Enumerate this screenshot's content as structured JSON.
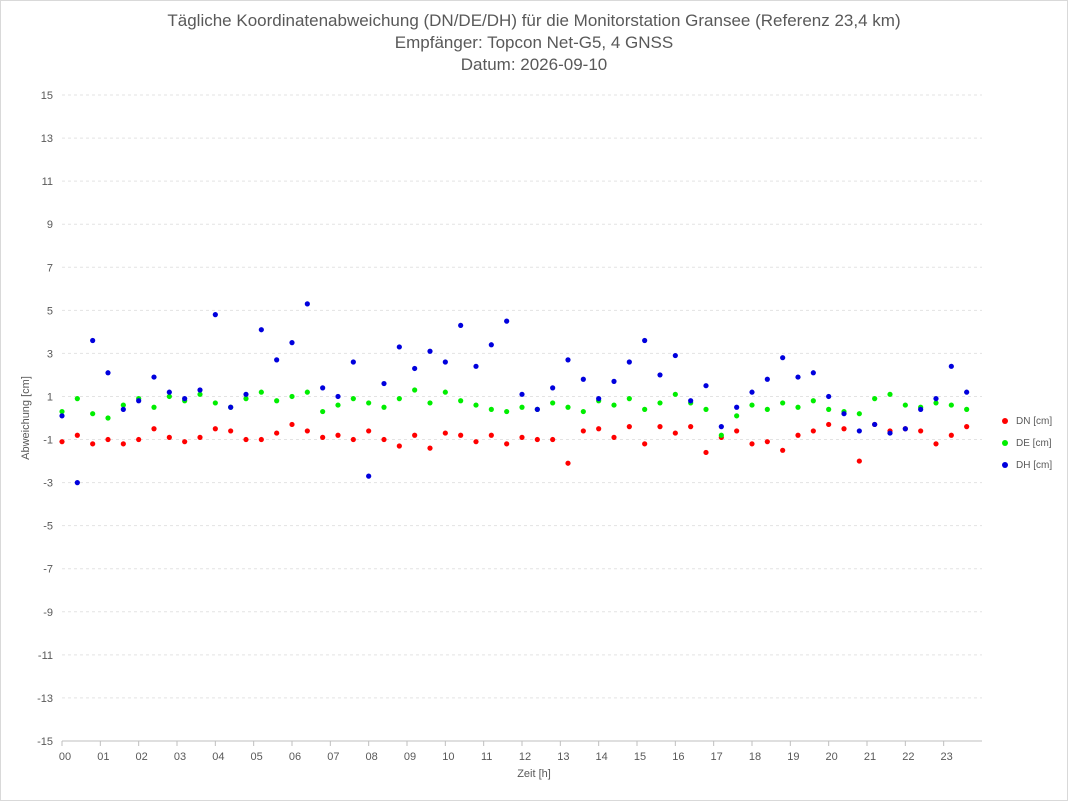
{
  "chart_data": {
    "type": "scatter",
    "title": "Tägliche Koordinatenabweichung (DN/DE/DH) für die Monitorstation Gransee (Referenz 23,4 km)",
    "subtitle1": "Empfänger: Topcon Net-G5, 4 GNSS",
    "subtitle2": "Datum: 2026-09-10",
    "xlabel": "Zeit [h]",
    "ylabel": "Abweichung [cm]",
    "xlim": [
      0,
      24
    ],
    "ylim": [
      -15,
      15
    ],
    "yticks": [
      "15",
      "13",
      "11",
      "9",
      "7",
      "5",
      "3",
      "1",
      "-1",
      "-3",
      "-5",
      "-7",
      "-9",
      "-11",
      "-13",
      "-15"
    ],
    "xticks": [
      "00",
      "01",
      "02",
      "03",
      "04",
      "05",
      "06",
      "07",
      "08",
      "09",
      "10",
      "11",
      "12",
      "13",
      "14",
      "15",
      "16",
      "17",
      "18",
      "19",
      "20",
      "21",
      "22",
      "23"
    ],
    "grid": true,
    "legend_position": "right",
    "series": [
      {
        "name": "DN [cm]",
        "color": "#ff0000",
        "x": [
          0.0,
          0.4,
          0.8,
          1.2,
          1.6,
          2.0,
          2.4,
          2.8,
          3.2,
          3.6,
          4.0,
          4.4,
          4.8,
          5.2,
          5.6,
          6.0,
          6.4,
          6.8,
          7.2,
          7.6,
          8.0,
          8.4,
          8.8,
          9.2,
          9.6,
          10.0,
          10.4,
          10.8,
          11.2,
          11.6,
          12.0,
          12.4,
          12.8,
          13.2,
          13.6,
          14.0,
          14.4,
          14.8,
          15.2,
          15.6,
          16.0,
          16.4,
          16.8,
          17.2,
          17.6,
          18.0,
          18.4,
          18.8,
          19.2,
          19.6,
          20.0,
          20.4,
          20.8,
          21.2,
          21.6,
          22.0,
          22.4,
          22.8,
          23.2,
          23.6
        ],
        "y": [
          -1.1,
          -0.8,
          -1.2,
          -1.0,
          -1.2,
          -1.0,
          -0.5,
          -0.9,
          -1.1,
          -0.9,
          -0.5,
          -0.6,
          -1.0,
          -1.0,
          -0.7,
          -0.3,
          -0.6,
          -0.9,
          -0.8,
          -1.0,
          -0.6,
          -1.0,
          -1.3,
          -0.8,
          -1.4,
          -0.7,
          -0.8,
          -1.1,
          -0.8,
          -1.2,
          -0.9,
          -1.0,
          -1.0,
          -2.1,
          -0.6,
          -0.5,
          -0.9,
          -0.4,
          -1.2,
          -0.4,
          -0.7,
          -0.4,
          -1.6,
          -0.9,
          -0.6,
          -1.2,
          -1.1,
          -1.5,
          -0.8,
          -0.6,
          -0.3,
          -0.5,
          -2.0,
          -0.3,
          -0.6,
          -0.5,
          -0.6,
          -1.2,
          -0.8,
          -0.4
        ]
      },
      {
        "name": "DE [cm]",
        "color": "#00ee00",
        "x": [
          0.0,
          0.4,
          0.8,
          1.2,
          1.6,
          2.0,
          2.4,
          2.8,
          3.2,
          3.6,
          4.0,
          4.4,
          4.8,
          5.2,
          5.6,
          6.0,
          6.4,
          6.8,
          7.2,
          7.6,
          8.0,
          8.4,
          8.8,
          9.2,
          9.6,
          10.0,
          10.4,
          10.8,
          11.2,
          11.6,
          12.0,
          12.4,
          12.8,
          13.2,
          13.6,
          14.0,
          14.4,
          14.8,
          15.2,
          15.6,
          16.0,
          16.4,
          16.8,
          17.2,
          17.6,
          18.0,
          18.4,
          18.8,
          19.2,
          19.6,
          20.0,
          20.4,
          20.8,
          21.2,
          21.6,
          22.0,
          22.4,
          22.8,
          23.2,
          23.6
        ],
        "y": [
          0.3,
          0.9,
          0.2,
          0.0,
          0.6,
          0.9,
          0.5,
          1.0,
          0.8,
          1.1,
          0.7,
          0.5,
          0.9,
          1.2,
          0.8,
          1.0,
          1.2,
          0.3,
          0.6,
          0.9,
          0.7,
          0.5,
          0.9,
          1.3,
          0.7,
          1.2,
          0.8,
          0.6,
          0.4,
          0.3,
          0.5,
          0.4,
          0.7,
          0.5,
          0.3,
          0.8,
          0.6,
          0.9,
          0.4,
          0.7,
          1.1,
          0.7,
          0.4,
          -0.8,
          0.1,
          0.6,
          0.4,
          0.7,
          0.5,
          0.8,
          0.4,
          0.3,
          0.2,
          0.9,
          1.1,
          0.6,
          0.5,
          0.7,
          0.6,
          0.4
        ]
      },
      {
        "name": "DH [cm]",
        "color": "#0000dd",
        "x": [
          0.0,
          0.4,
          0.8,
          1.2,
          1.6,
          2.0,
          2.4,
          2.8,
          3.2,
          3.6,
          4.0,
          4.4,
          4.8,
          5.2,
          5.6,
          6.0,
          6.4,
          6.8,
          7.2,
          7.6,
          8.0,
          8.4,
          8.8,
          9.2,
          9.6,
          10.0,
          10.4,
          10.8,
          11.2,
          11.6,
          12.0,
          12.4,
          12.8,
          13.2,
          13.6,
          14.0,
          14.4,
          14.8,
          15.2,
          15.6,
          16.0,
          16.4,
          16.8,
          17.2,
          17.6,
          18.0,
          18.4,
          18.8,
          19.2,
          19.6,
          20.0,
          20.4,
          20.8,
          21.2,
          21.6,
          22.0,
          22.4,
          22.8,
          23.2,
          23.6
        ],
        "y": [
          0.1,
          -3.0,
          3.6,
          2.1,
          0.4,
          0.8,
          1.9,
          1.2,
          0.9,
          1.3,
          4.8,
          0.5,
          1.1,
          4.1,
          2.7,
          3.5,
          5.3,
          1.4,
          1.0,
          2.6,
          -2.7,
          1.6,
          3.3,
          2.3,
          3.1,
          2.6,
          4.3,
          2.4,
          3.4,
          4.5,
          1.1,
          0.4,
          1.4,
          2.7,
          1.8,
          0.9,
          1.7,
          2.6,
          3.6,
          2.0,
          2.9,
          0.8,
          1.5,
          -0.4,
          0.5,
          1.2,
          1.8,
          2.8,
          1.9,
          2.1,
          1.0,
          0.2,
          -0.6,
          -0.3,
          -0.7,
          -0.5,
          0.4,
          0.9,
          2.4,
          1.2
        ]
      }
    ]
  }
}
